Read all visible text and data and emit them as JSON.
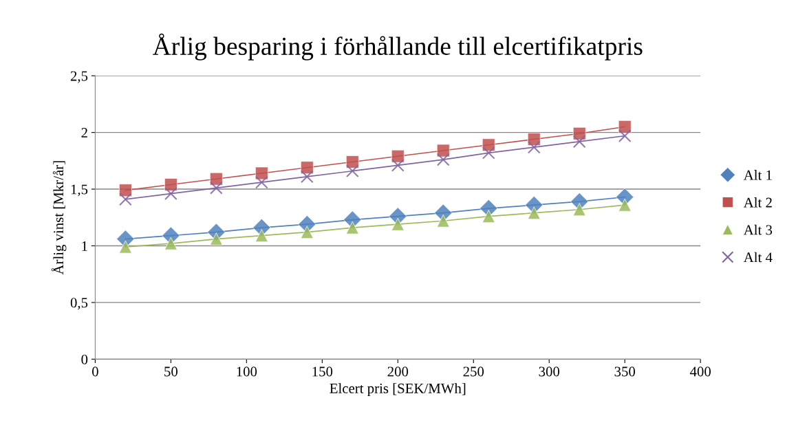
{
  "chart_data": {
    "type": "line",
    "title": "Årlig besparing i förhållande till elcertifikatpris",
    "xlabel": "Elcert pris [SEK/MWh]",
    "ylabel": "Årlig vinst [Mkr/år]",
    "x": [
      20,
      50,
      80,
      110,
      140,
      170,
      200,
      230,
      260,
      290,
      320,
      350
    ],
    "series": [
      {
        "name": "Alt 1",
        "color": "#4f81bd",
        "marker": "diamond",
        "values": [
          1.06,
          1.09,
          1.12,
          1.16,
          1.19,
          1.23,
          1.26,
          1.29,
          1.33,
          1.36,
          1.39,
          1.43
        ]
      },
      {
        "name": "Alt 2",
        "color": "#c0504d",
        "marker": "square",
        "values": [
          1.49,
          1.54,
          1.59,
          1.64,
          1.69,
          1.74,
          1.79,
          1.84,
          1.89,
          1.94,
          1.99,
          2.05
        ]
      },
      {
        "name": "Alt 3",
        "color": "#9bbb59",
        "marker": "triangle",
        "values": [
          0.99,
          1.02,
          1.06,
          1.09,
          1.12,
          1.16,
          1.19,
          1.22,
          1.26,
          1.29,
          1.32,
          1.36
        ]
      },
      {
        "name": "Alt 4",
        "color": "#8064a2",
        "marker": "cross",
        "values": [
          1.41,
          1.46,
          1.51,
          1.56,
          1.61,
          1.66,
          1.71,
          1.76,
          1.82,
          1.87,
          1.92,
          1.97
        ]
      }
    ],
    "xlim": [
      0,
      400
    ],
    "xticks": [
      0,
      50,
      100,
      150,
      200,
      250,
      300,
      350,
      400
    ],
    "ylim": [
      0,
      2.5
    ],
    "yticks": [
      0,
      {
        "value": 0.5,
        "label": "0,5"
      },
      1,
      {
        "value": 1.5,
        "label": "1,5"
      },
      2,
      {
        "value": 2.5,
        "label": "2,5"
      }
    ],
    "grid": "y",
    "legend": "right",
    "line_style": "solid"
  }
}
